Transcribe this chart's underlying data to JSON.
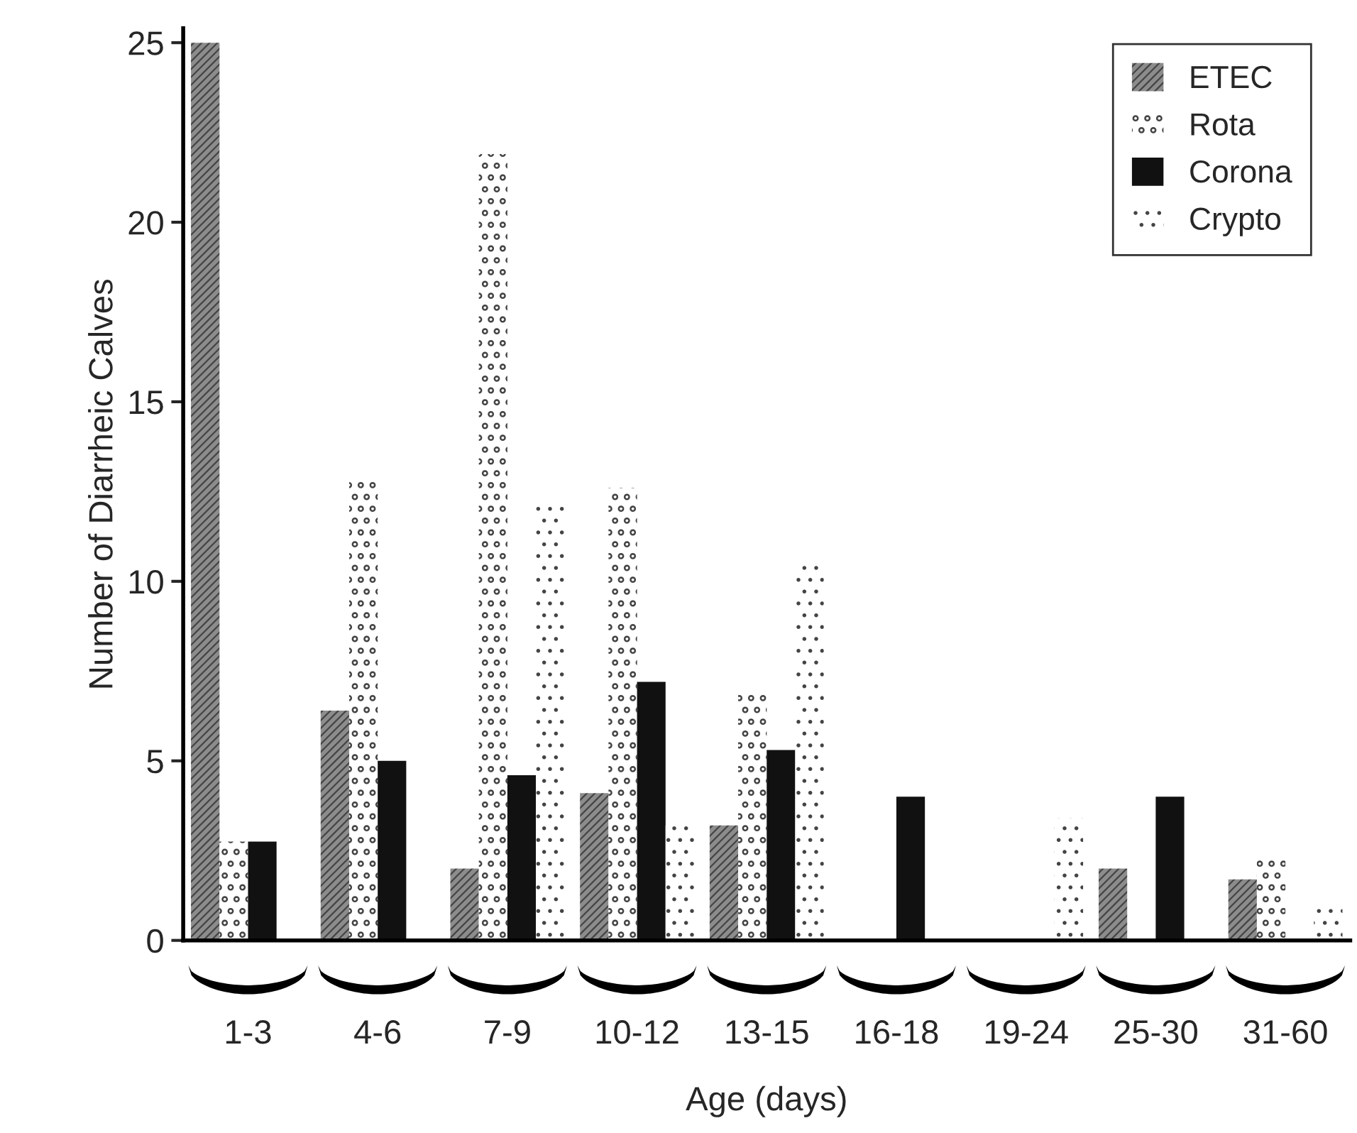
{
  "chart_data": {
    "type": "bar",
    "xlabel": "Age (days)",
    "ylabel": "Number of Diarrheic Calves",
    "categories": [
      "1-3",
      "4-6",
      "7-9",
      "10-12",
      "13-15",
      "16-18",
      "19-24",
      "25-30",
      "31-60"
    ],
    "series": [
      {
        "name": "ETEC",
        "color": "#8c8c8c",
        "values": [
          25,
          6.4,
          2.0,
          4.1,
          3.2,
          null,
          null,
          2.0,
          1.7
        ]
      },
      {
        "name": "Rota",
        "color": "#ffffff",
        "values": [
          2.75,
          12.9,
          21.9,
          12.6,
          6.85,
          null,
          null,
          null,
          2.25
        ]
      },
      {
        "name": "Corona",
        "color": "#111111",
        "values": [
          2.75,
          5.0,
          4.6,
          7.2,
          5.3,
          4.0,
          null,
          4.0,
          null
        ]
      },
      {
        "name": "Crypto",
        "color": "#ffffff",
        "values": [
          null,
          null,
          12.2,
          3.2,
          10.5,
          null,
          3.4,
          null,
          0.95
        ]
      }
    ],
    "ylim": [
      0,
      25.4
    ],
    "yticks": [
      0,
      5,
      10,
      15,
      20,
      25
    ],
    "grid": false,
    "legend": "top right"
  }
}
